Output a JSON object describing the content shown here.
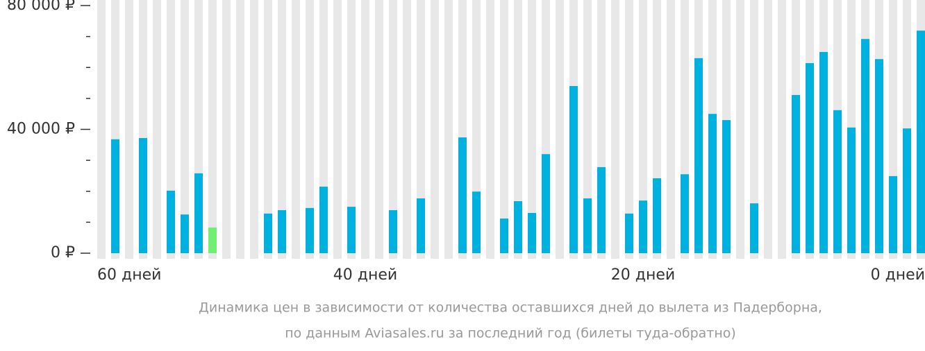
{
  "chart_data": {
    "type": "bar",
    "caption": [
      "Динамика цен в зависимости от количества оставшихся дней до вылета из Падерборна,",
      "по данным Aviasales.ru за последний год (билеты туда-обратно)"
    ],
    "x": [
      59,
      58,
      57,
      56,
      55,
      54,
      53,
      52,
      51,
      50,
      49,
      48,
      47,
      46,
      45,
      44,
      43,
      42,
      41,
      40,
      39,
      38,
      37,
      36,
      35,
      34,
      33,
      32,
      31,
      30,
      29,
      28,
      27,
      26,
      25,
      24,
      23,
      22,
      21,
      20,
      19,
      18,
      17,
      16,
      15,
      14,
      13,
      12,
      11,
      10,
      9,
      8,
      7,
      6,
      5,
      4,
      3,
      2,
      1,
      0
    ],
    "values": [
      null,
      36800,
      null,
      37200,
      null,
      20200,
      12500,
      25800,
      8300,
      null,
      null,
      null,
      12800,
      13900,
      null,
      14600,
      21500,
      null,
      15000,
      null,
      null,
      13900,
      null,
      17700,
      null,
      null,
      37400,
      19900,
      null,
      11200,
      16800,
      13000,
      32000,
      null,
      54000,
      17700,
      27800,
      null,
      12800,
      17000,
      24200,
      null,
      25500,
      63000,
      45000,
      43000,
      null,
      16100,
      null,
      null,
      51100,
      61400,
      65000,
      46200,
      40600,
      69200,
      62700,
      24900,
      40300,
      71900
    ],
    "color": "#00b1dd",
    "min_color": "#72ee72",
    "background_color": "#e8e8e8",
    "xlim": [
      59.5,
      -0.3
    ],
    "xticks": [
      {
        "value": 60,
        "label": "60 дней"
      },
      {
        "value": 40,
        "label": "40 дней"
      },
      {
        "value": 20,
        "label": "20 дней"
      },
      {
        "value": 0,
        "label": "0 дней"
      }
    ],
    "ylim": [
      0,
      80000
    ],
    "yticks": [
      {
        "value": 0,
        "label": "0 ₽"
      },
      {
        "value": 40000,
        "label": "40 000 ₽"
      },
      {
        "value": 80000,
        "label": "80 000 ₽"
      }
    ],
    "yminor": [
      10000,
      20000,
      30000,
      50000,
      60000,
      70000
    ]
  }
}
